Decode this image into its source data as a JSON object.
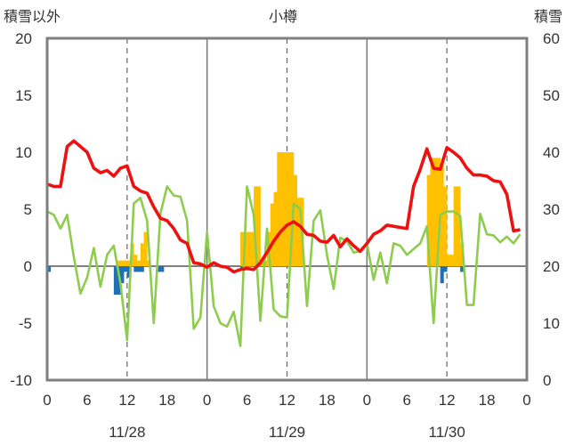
{
  "chart_data": {
    "type": "bar",
    "title": "小樽",
    "left_axis_label": "積雪以外",
    "right_axis_label": "積雪",
    "left_ylim": [
      -10,
      20
    ],
    "right_ylim": [
      0,
      60
    ],
    "left_ticks": [
      "20",
      "15",
      "10",
      "5",
      "0",
      "-5",
      "-10"
    ],
    "right_ticks": [
      "60",
      "50",
      "40",
      "30",
      "20",
      "10",
      "0"
    ],
    "x_tick_labels": [
      "0",
      "6",
      "12",
      "18",
      "0",
      "6",
      "12",
      "18",
      "0",
      "6",
      "12",
      "18",
      "0"
    ],
    "x_range_hours": [
      0,
      72
    ],
    "date_labels": [
      "11/28",
      "11/29",
      "11/30"
    ],
    "grid": "dashed vertical at 12h, solid vertical at day boundaries",
    "series": [
      {
        "color": "#ee1111",
        "axis": "left",
        "hours": [
          0,
          1,
          2,
          3,
          4,
          5,
          6,
          7,
          8,
          9,
          10,
          11,
          12,
          13,
          14,
          15,
          16,
          17,
          18,
          19,
          20,
          21,
          22,
          23,
          24,
          25,
          26,
          27,
          28,
          29,
          30,
          31,
          32,
          33,
          34,
          35,
          36,
          37,
          38,
          39,
          40,
          41,
          42,
          43,
          44,
          45,
          46,
          47,
          48,
          49,
          50,
          51,
          52,
          53,
          54,
          55,
          56,
          57,
          58,
          59,
          60,
          61,
          62,
          63,
          64,
          65,
          66,
          67,
          68,
          69,
          70,
          71
        ],
        "values": [
          7.2,
          7.0,
          7.0,
          10.5,
          11.0,
          10.5,
          10.0,
          8.6,
          8.2,
          8.4,
          7.9,
          8.6,
          8.8,
          7.0,
          6.6,
          6.4,
          5.2,
          4.2,
          4.0,
          3.3,
          2.3,
          2.0,
          0.3,
          0.2,
          -0.1,
          0.3,
          0.0,
          -0.1,
          -0.5,
          -0.3,
          -0.2,
          -0.3,
          0.3,
          1.2,
          2.2,
          3.0,
          3.6,
          3.9,
          3.5,
          2.8,
          2.7,
          2.2,
          2.1,
          2.7,
          1.7,
          2.4,
          1.8,
          1.3,
          2.0,
          2.8,
          3.1,
          3.6,
          3.5,
          3.4,
          3.3,
          7.0,
          8.5,
          10.3,
          8.6,
          8.5,
          10.4,
          10.0,
          9.5,
          8.6,
          8.0,
          8.0,
          7.9,
          7.5,
          7.4,
          6.3,
          3.1,
          3.2
        ]
      },
      {
        "color": "#8ecc4e",
        "axis": "left",
        "hours": [
          0,
          1,
          2,
          3,
          4,
          5,
          6,
          7,
          8,
          9,
          10,
          11,
          12,
          13,
          14,
          15,
          16,
          17,
          18,
          19,
          20,
          21,
          22,
          23,
          24,
          25,
          26,
          27,
          28,
          29,
          30,
          31,
          32,
          33,
          34,
          35,
          36,
          37,
          38,
          39,
          40,
          41,
          42,
          43,
          44,
          45,
          46,
          47,
          48,
          49,
          50,
          51,
          52,
          53,
          54,
          55,
          56,
          57,
          58,
          59,
          60,
          61,
          62,
          63,
          64,
          65,
          66,
          67,
          68,
          69,
          70,
          71
        ],
        "values": [
          4.8,
          4.5,
          3.3,
          4.5,
          0.8,
          -2.4,
          -1.0,
          1.6,
          -1.8,
          1.0,
          1.8,
          -1.5,
          -6.5,
          5.5,
          6.0,
          4.0,
          -5.0,
          4.6,
          7.0,
          6.2,
          6.1,
          4.0,
          -5.5,
          -4.5,
          3.0,
          -3.5,
          -5.0,
          -5.3,
          -4.0,
          -7.0,
          7.0,
          4.5,
          -4.8,
          3.3,
          -3.8,
          -4.4,
          -4.5,
          5.5,
          5.0,
          -3.5,
          4.0,
          4.9,
          1.0,
          -2.0,
          2.5,
          2.2,
          1.2,
          1.3,
          2.0,
          -1.2,
          1.2,
          -1.5,
          2.0,
          1.8,
          1.0,
          1.5,
          2.0,
          3.5,
          -5.0,
          4.5,
          4.8,
          4.8,
          4.4,
          -3.4,
          -3.4,
          4.6,
          2.8,
          2.7,
          2.1,
          2.6,
          2.0,
          2.8
        ]
      },
      {
        "color": "#ffc000",
        "axis": "right",
        "hours": [
          10.5,
          11.0,
          11.5,
          12.0,
          12.5,
          13.0,
          13.5,
          14.0,
          14.5,
          15.0,
          29.0,
          29.5,
          30.0,
          30.5,
          31.0,
          31.5,
          32.0,
          32.5,
          33.0,
          33.5,
          34.0,
          34.5,
          35.0,
          35.5,
          36.0,
          36.5,
          37.0,
          37.5,
          38.0,
          57.0,
          57.5,
          58.0,
          58.5,
          59.0,
          59.5,
          60.0,
          60.5,
          61.0,
          61.5,
          62.0
        ],
        "values": [
          21,
          21,
          21,
          21,
          24,
          22,
          21,
          24,
          26,
          21,
          26,
          26,
          26,
          26,
          34,
          34,
          21,
          21,
          26,
          31,
          33,
          40,
          40,
          40,
          40,
          40,
          36,
          32,
          32,
          36,
          39,
          39,
          39,
          38,
          34,
          22,
          22,
          34,
          34,
          24
        ]
      },
      {
        "color": "#1f6fb4",
        "axis": "left",
        "hours": [
          0.0,
          10.0,
          10.5,
          11.0,
          11.5,
          12.0,
          13.0,
          13.5,
          14.0,
          16.5,
          17.0,
          29.0,
          59.0,
          59.5,
          62.0
        ],
        "values": [
          -0.5,
          -2.5,
          -2.5,
          -1.5,
          -0.5,
          -1.0,
          -0.5,
          -0.5,
          -0.5,
          -0.5,
          -0.5,
          -0.2,
          -1.5,
          -0.5,
          -0.5
        ]
      },
      {
        "color": "#8030a0",
        "axis": "left",
        "hours": [
          0,
          72
        ],
        "values": [
          -10,
          -10
        ]
      }
    ]
  }
}
